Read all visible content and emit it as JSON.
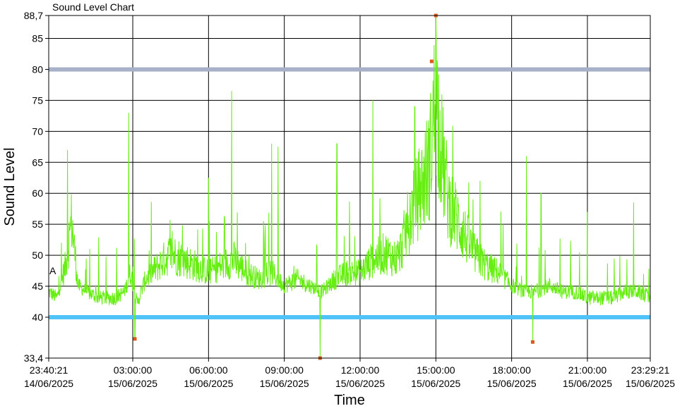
{
  "chart_data": {
    "type": "line",
    "title": "Sound Level Chart",
    "xlabel": "Time",
    "ylabel": "Sound Level",
    "ylim": [
      33.4,
      88.7
    ],
    "y_ticks": [
      {
        "value": 33.4,
        "label": "33,4"
      },
      {
        "value": 40,
        "label": "40"
      },
      {
        "value": 45,
        "label": "45"
      },
      {
        "value": 50,
        "label": "50"
      },
      {
        "value": 55,
        "label": "55"
      },
      {
        "value": 60,
        "label": "60"
      },
      {
        "value": 65,
        "label": "65"
      },
      {
        "value": 70,
        "label": "70"
      },
      {
        "value": 75,
        "label": "75"
      },
      {
        "value": 80,
        "label": "80"
      },
      {
        "value": 85,
        "label": "85"
      },
      {
        "value": 88.7,
        "label": "88,7"
      }
    ],
    "xlim": [
      "2025-06-14 23:40:21",
      "2025-06-15 23:29:21"
    ],
    "x_ticks": [
      {
        "x": "2025-06-14 23:40:21",
        "time": "23:40:21",
        "date": "14/06/2025"
      },
      {
        "x": "2025-06-15 03:00:00",
        "time": "03:00:00",
        "date": "15/06/2025"
      },
      {
        "x": "2025-06-15 06:00:00",
        "time": "06:00:00",
        "date": "15/06/2025"
      },
      {
        "x": "2025-06-15 09:00:00",
        "time": "09:00:00",
        "date": "15/06/2025"
      },
      {
        "x": "2025-06-15 12:00:00",
        "time": "12:00:00",
        "date": "15/06/2025"
      },
      {
        "x": "2025-06-15 15:00:00",
        "time": "15:00:00",
        "date": "15/06/2025"
      },
      {
        "x": "2025-06-15 18:00:00",
        "time": "18:00:00",
        "date": "15/06/2025"
      },
      {
        "x": "2025-06-15 21:00:00",
        "time": "21:00:00",
        "date": "15/06/2025"
      },
      {
        "x": "2025-06-15 23:29:21",
        "time": "23:29:21",
        "date": "15/06/2025"
      }
    ],
    "grid": true,
    "thresholds": [
      {
        "value": 80,
        "color": "#a6b0c8"
      },
      {
        "value": 40,
        "color": "#4fc3f7"
      }
    ],
    "marker_label": "A",
    "marker_label_value": 47.5,
    "series": [
      {
        "color": "#66ee11",
        "points": [
          {
            "x": "2025-06-14 23:40:21",
            "y": 44
          },
          {
            "x": "2025-06-15 00:00:00",
            "y": 43
          },
          {
            "x": "2025-06-15 00:20:00",
            "y": 48
          },
          {
            "x": "2025-06-15 00:35:00",
            "y": 55
          },
          {
            "x": "2025-06-15 00:50:00",
            "y": 45
          },
          {
            "x": "2025-06-15 01:10:00",
            "y": 44
          },
          {
            "x": "2025-06-15 01:40:00",
            "y": 43
          },
          {
            "x": "2025-06-15 02:20:00",
            "y": 43
          },
          {
            "x": "2025-06-15 02:40:00",
            "y": 44
          },
          {
            "x": "2025-06-15 02:55:00",
            "y": 47
          },
          {
            "x": "2025-06-15 03:10:00",
            "y": 42
          },
          {
            "x": "2025-06-15 03:30:00",
            "y": 46
          },
          {
            "x": "2025-06-15 04:00:00",
            "y": 48
          },
          {
            "x": "2025-06-15 04:30:00",
            "y": 50
          },
          {
            "x": "2025-06-15 05:00:00",
            "y": 49
          },
          {
            "x": "2025-06-15 05:30:00",
            "y": 48
          },
          {
            "x": "2025-06-15 06:00:00",
            "y": 47
          },
          {
            "x": "2025-06-15 06:30:00",
            "y": 48
          },
          {
            "x": "2025-06-15 07:00:00",
            "y": 49
          },
          {
            "x": "2025-06-15 07:30:00",
            "y": 47
          },
          {
            "x": "2025-06-15 08:00:00",
            "y": 46
          },
          {
            "x": "2025-06-15 08:30:00",
            "y": 47
          },
          {
            "x": "2025-06-15 09:00:00",
            "y": 45
          },
          {
            "x": "2025-06-15 09:30:00",
            "y": 46
          },
          {
            "x": "2025-06-15 10:00:00",
            "y": 45
          },
          {
            "x": "2025-06-15 10:30:00",
            "y": 44
          },
          {
            "x": "2025-06-15 11:00:00",
            "y": 46
          },
          {
            "x": "2025-06-15 11:30:00",
            "y": 47
          },
          {
            "x": "2025-06-15 12:00:00",
            "y": 47
          },
          {
            "x": "2025-06-15 12:30:00",
            "y": 49
          },
          {
            "x": "2025-06-15 13:00:00",
            "y": 50
          },
          {
            "x": "2025-06-15 13:30:00",
            "y": 49
          },
          {
            "x": "2025-06-15 14:00:00",
            "y": 56
          },
          {
            "x": "2025-06-15 14:30:00",
            "y": 61
          },
          {
            "x": "2025-06-15 14:45:00",
            "y": 64
          },
          {
            "x": "2025-06-15 15:00:00",
            "y": 75
          },
          {
            "x": "2025-06-15 15:15:00",
            "y": 65
          },
          {
            "x": "2025-06-15 15:30:00",
            "y": 58
          },
          {
            "x": "2025-06-15 16:00:00",
            "y": 54
          },
          {
            "x": "2025-06-15 16:30:00",
            "y": 50
          },
          {
            "x": "2025-06-15 17:00:00",
            "y": 48
          },
          {
            "x": "2025-06-15 17:30:00",
            "y": 47
          },
          {
            "x": "2025-06-15 18:00:00",
            "y": 45
          },
          {
            "x": "2025-06-15 18:30:00",
            "y": 44
          },
          {
            "x": "2025-06-15 19:00:00",
            "y": 44
          },
          {
            "x": "2025-06-15 19:30:00",
            "y": 45
          },
          {
            "x": "2025-06-15 20:00:00",
            "y": 44
          },
          {
            "x": "2025-06-15 20:30:00",
            "y": 44
          },
          {
            "x": "2025-06-15 21:00:00",
            "y": 43
          },
          {
            "x": "2025-06-15 21:30:00",
            "y": 43
          },
          {
            "x": "2025-06-15 22:00:00",
            "y": 43
          },
          {
            "x": "2025-06-15 22:30:00",
            "y": 44
          },
          {
            "x": "2025-06-15 23:00:00",
            "y": 44
          },
          {
            "x": "2025-06-15 23:29:21",
            "y": 43
          }
        ],
        "peaks": [
          {
            "x": "2025-06-15 00:25:00",
            "y": 67
          },
          {
            "x": "2025-06-15 02:50:00",
            "y": 73
          },
          {
            "x": "2025-06-15 06:00:00",
            "y": 62.5
          },
          {
            "x": "2025-06-15 06:55:00",
            "y": 76.5
          },
          {
            "x": "2025-06-15 08:30:00",
            "y": 68
          },
          {
            "x": "2025-06-15 08:45:00",
            "y": 67.5
          },
          {
            "x": "2025-06-15 11:05:00",
            "y": 68
          },
          {
            "x": "2025-06-15 12:30:00",
            "y": 75
          },
          {
            "x": "2025-06-15 14:10:00",
            "y": 74
          },
          {
            "x": "2025-06-15 15:00:00",
            "y": 88.7
          },
          {
            "x": "2025-06-15 16:45:00",
            "y": 62
          },
          {
            "x": "2025-06-15 18:35:00",
            "y": 66
          },
          {
            "x": "2025-06-15 19:10:00",
            "y": 60
          },
          {
            "x": "2025-06-15 21:00:00",
            "y": 57
          },
          {
            "x": "2025-06-15 22:50:00",
            "y": 58.5
          }
        ],
        "dips": [
          {
            "x": "2025-06-15 03:05:00",
            "y": 36.5
          },
          {
            "x": "2025-06-15 10:25:00",
            "y": 33.4
          },
          {
            "x": "2025-06-15 18:50:00",
            "y": 36
          }
        ]
      }
    ],
    "extreme_markers": [
      {
        "x": "2025-06-15 03:05:00",
        "y": 36.5
      },
      {
        "x": "2025-06-15 10:25:00",
        "y": 33.4
      },
      {
        "x": "2025-06-15 14:50:00",
        "y": 81.3
      },
      {
        "x": "2025-06-15 15:00:00",
        "y": 88.7
      },
      {
        "x": "2025-06-15 18:50:00",
        "y": 36
      }
    ],
    "marker_color": "#d95a1e"
  }
}
